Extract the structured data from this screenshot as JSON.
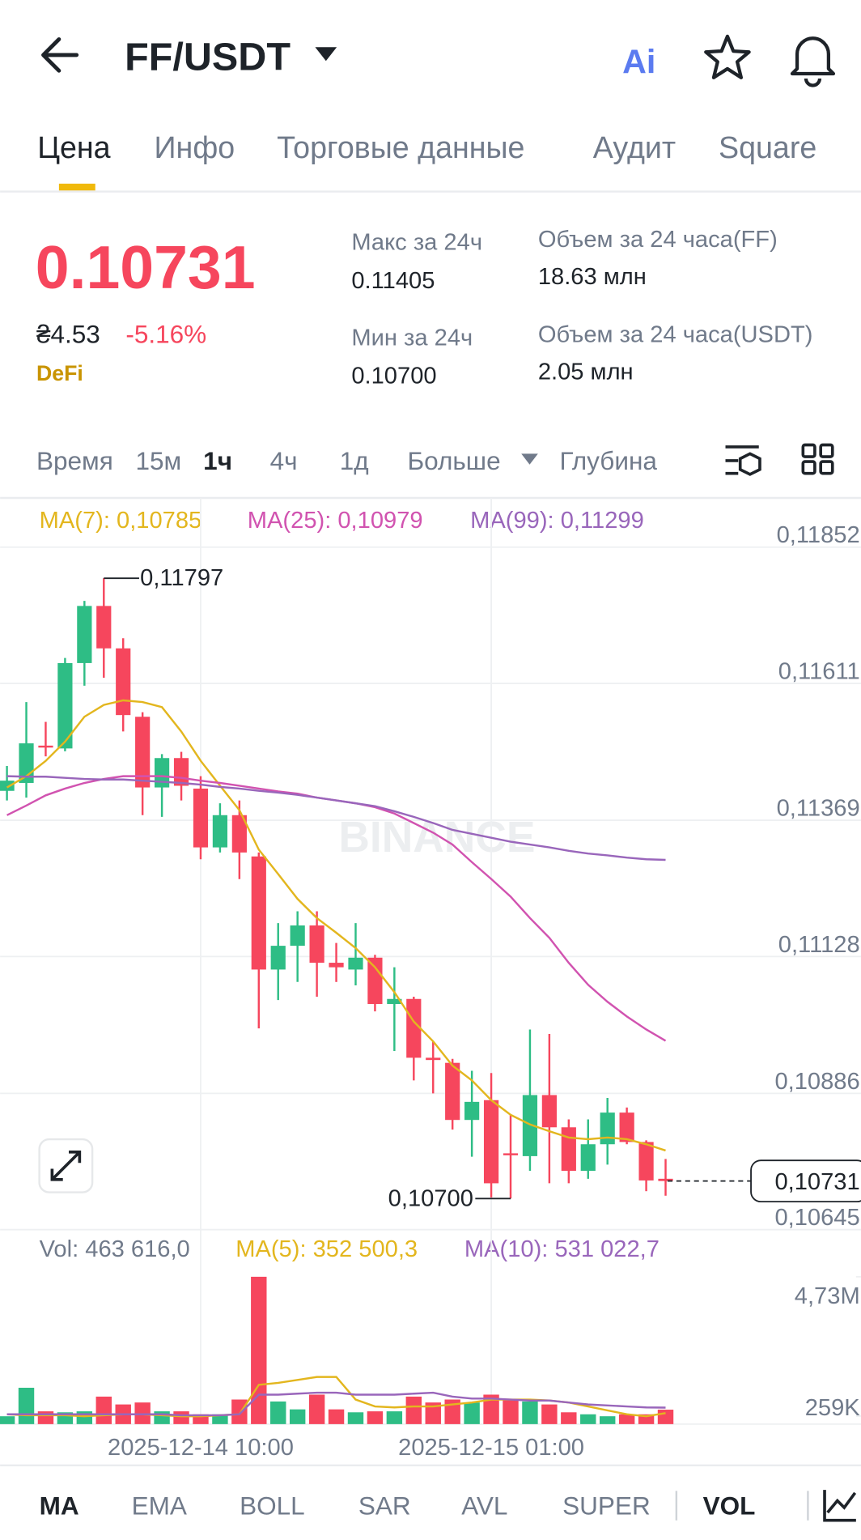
{
  "header": {
    "pair": "FF/USDT",
    "ai": "Ai"
  },
  "tabs": [
    "Цена",
    "Инфо",
    "Торговые данные",
    "Аудит",
    "Square"
  ],
  "price": {
    "last": "0.10731",
    "fiat": "₴4.53",
    "change": "-5.16%",
    "tag": "DeFi"
  },
  "stats": [
    {
      "label": "Макс за 24ч",
      "value": "0.11405"
    },
    {
      "label": "Мин за 24ч",
      "value": "0.10700"
    },
    {
      "label": "Объем за 24 часа(FF)",
      "value": "18.63 млн"
    },
    {
      "label": "Объем за 24 часа(USDT)",
      "value": "2.05 млн"
    }
  ],
  "intervals": [
    "Время",
    "15м",
    "1ч",
    "4ч",
    "1д",
    "Больше",
    "Глубина"
  ],
  "chart_data": [
    {
      "type": "candlestick",
      "watermark": "BINANCE",
      "up_color": "#2ebd85",
      "down_color": "#f6465d",
      "grid": true,
      "categories": [
        null,
        null,
        null,
        null,
        null,
        null,
        null,
        null,
        null,
        null,
        "2025-12-14 10:00",
        null,
        null,
        null,
        null,
        null,
        null,
        null,
        null,
        null,
        null,
        null,
        null,
        null,
        null,
        "2025-12-15 01:00",
        null,
        null,
        null,
        null,
        null,
        null,
        null,
        null,
        null
      ],
      "open": [
        0.11421,
        0.11435,
        0.11501,
        0.11496,
        0.11647,
        0.11748,
        0.11673,
        0.11552,
        0.11427,
        0.11479,
        0.11425,
        0.11321,
        0.11378,
        0.11305,
        0.11105,
        0.11147,
        0.11183,
        0.11117,
        0.11105,
        0.11126,
        0.11044,
        0.11053,
        0.10949,
        0.1094,
        0.10839,
        0.10874,
        0.1078,
        0.10775,
        0.10883,
        0.10826,
        0.10749,
        0.10796,
        0.10852,
        0.108,
        0.10735
      ],
      "high": [
        0.11465,
        0.11578,
        0.11543,
        0.11656,
        0.11757,
        0.11797,
        0.11691,
        0.1156,
        0.11486,
        0.1149,
        0.11447,
        0.11399,
        0.11404,
        0.11312,
        0.11187,
        0.11208,
        0.11208,
        0.11152,
        0.11187,
        0.11131,
        0.11109,
        0.11057,
        0.10978,
        0.10947,
        0.10926,
        0.10922,
        0.10848,
        0.10999,
        0.10991,
        0.1084,
        0.1084,
        0.10878,
        0.10861,
        0.10803,
        0.1077
      ],
      "low": [
        0.11404,
        0.11409,
        0.11482,
        0.11491,
        0.11607,
        0.11621,
        0.11526,
        0.11378,
        0.11375,
        0.11404,
        0.113,
        0.11312,
        0.11265,
        0.11001,
        0.11051,
        0.11083,
        0.11057,
        0.11083,
        0.11077,
        0.11031,
        0.10961,
        0.10909,
        0.10886,
        0.10822,
        0.10774,
        0.10702,
        0.107,
        0.10749,
        0.10727,
        0.10727,
        0.10735,
        0.1076,
        0.10796,
        0.10713,
        0.10705
      ],
      "close": [
        0.11439,
        0.11505,
        0.11498,
        0.11647,
        0.11748,
        0.11673,
        0.11555,
        0.11427,
        0.11479,
        0.1143,
        0.11321,
        0.11378,
        0.11312,
        0.11105,
        0.11147,
        0.11183,
        0.11117,
        0.11109,
        0.11126,
        0.11044,
        0.11053,
        0.10949,
        0.10945,
        0.10839,
        0.10871,
        0.10727,
        0.10778,
        0.10883,
        0.10826,
        0.10749,
        0.10796,
        0.10852,
        0.108,
        0.10732,
        0.10731
      ],
      "lines": [
        {
          "legend": "MA(7): 0,10785",
          "color": "#e3b61e",
          "values": [
            0.11427,
            0.11447,
            0.11474,
            0.11508,
            0.11552,
            0.11573,
            0.11581,
            0.11578,
            0.11569,
            0.11526,
            0.11474,
            0.1143,
            0.11387,
            0.11317,
            0.11274,
            0.1123,
            0.11196,
            0.1117,
            0.11143,
            0.11109,
            0.11065,
            0.11013,
            0.10978,
            0.10935,
            0.10909,
            0.10874,
            0.10848,
            0.10831,
            0.10819,
            0.10808,
            0.10805,
            0.10808,
            0.10805,
            0.10796,
            0.10785
          ]
        },
        {
          "legend": "MA(25): 0,10979",
          "color": "#d153b0",
          "values": [
            0.11378,
            0.11395,
            0.11413,
            0.11425,
            0.11435,
            0.11442,
            0.11447,
            0.11447,
            0.11447,
            0.11444,
            0.11439,
            0.11435,
            0.1143,
            0.11425,
            0.1142,
            0.11416,
            0.11409,
            0.11404,
            0.11399,
            0.11392,
            0.11381,
            0.11364,
            0.11347,
            0.11326,
            0.11295,
            0.11265,
            0.11234,
            0.11196,
            0.11161,
            0.11117,
            0.11078,
            0.11048,
            0.11022,
            0.10999,
            0.10979
          ]
        },
        {
          "legend": "MA(99): 0,11299",
          "color": "#9966bb",
          "values": [
            0.11447,
            0.11446,
            0.11446,
            0.11444,
            0.11442,
            0.11441,
            0.11441,
            0.11439,
            0.11437,
            0.11435,
            0.11432,
            0.11428,
            0.11425,
            0.11421,
            0.11418,
            0.11414,
            0.11409,
            0.11404,
            0.11399,
            0.11394,
            0.11385,
            0.11375,
            0.11364,
            0.11352,
            0.11345,
            0.11338,
            0.11331,
            0.11326,
            0.11321,
            0.11315,
            0.1131,
            0.11307,
            0.11303,
            0.113,
            0.11299
          ]
        }
      ],
      "annotations": {
        "high": {
          "value": 0.11797,
          "label": "0,11797"
        },
        "low": {
          "value": 0.107,
          "label": "0,10700"
        },
        "last": {
          "value": 0.10731,
          "label": "0,10731"
        }
      },
      "ylim": [
        0.10645,
        0.11939
      ],
      "yticks": [
        {
          "value": 0.11852,
          "label": "0,11852"
        },
        {
          "value": 0.11611,
          "label": "0,11611"
        },
        {
          "value": 0.11369,
          "label": "0,11369"
        },
        {
          "value": 0.11128,
          "label": "0,11128"
        },
        {
          "value": 0.10886,
          "label": "0,10886"
        },
        {
          "value": 0.10645,
          "label": "0,10645"
        }
      ]
    },
    {
      "type": "bar",
      "legend": "Vol: 463 616,0",
      "values": [
        252000,
        1167000,
        410000,
        379000,
        410000,
        883000,
        631000,
        694000,
        410000,
        410000,
        315000,
        315000,
        789000,
        4730000,
        726000,
        473000,
        946000,
        473000,
        379000,
        410000,
        410000,
        883000,
        694000,
        789000,
        694000,
        946000,
        789000,
        726000,
        631000,
        379000,
        315000,
        252000,
        315000,
        315000,
        463616
      ],
      "lines": [
        {
          "legend": "MA(5): 352 500,3",
          "color": "#e3b61e",
          "values": [
            315000,
            284000,
            284000,
            284000,
            252000,
            284000,
            315000,
            315000,
            284000,
            252000,
            252000,
            284000,
            315000,
            1262000,
            1325000,
            1420000,
            1514000,
            1514000,
            789000,
            568000,
            536000,
            568000,
            568000,
            631000,
            694000,
            789000,
            789000,
            789000,
            757000,
            694000,
            568000,
            442000,
            315000,
            252000,
            352500
          ]
        },
        {
          "legend": "MA(10): 531 022,7",
          "color": "#9966bb",
          "values": [
            315000,
            315000,
            315000,
            315000,
            315000,
            315000,
            315000,
            315000,
            315000,
            284000,
            284000,
            284000,
            315000,
            946000,
            946000,
            978000,
            1009000,
            1009000,
            946000,
            946000,
            946000,
            978000,
            1009000,
            883000,
            820000,
            820000,
            789000,
            757000,
            757000,
            694000,
            631000,
            599000,
            568000,
            536000,
            531022.7
          ]
        }
      ],
      "ylim": [
        0,
        4950000
      ],
      "yticks": [
        {
          "value": 4730000,
          "label": "4,73M"
        },
        {
          "value": 259000,
          "label": "259K"
        }
      ]
    }
  ],
  "indicators": [
    "MA",
    "EMA",
    "BOLL",
    "SAR",
    "AVL",
    "SUPER",
    "VOL"
  ]
}
